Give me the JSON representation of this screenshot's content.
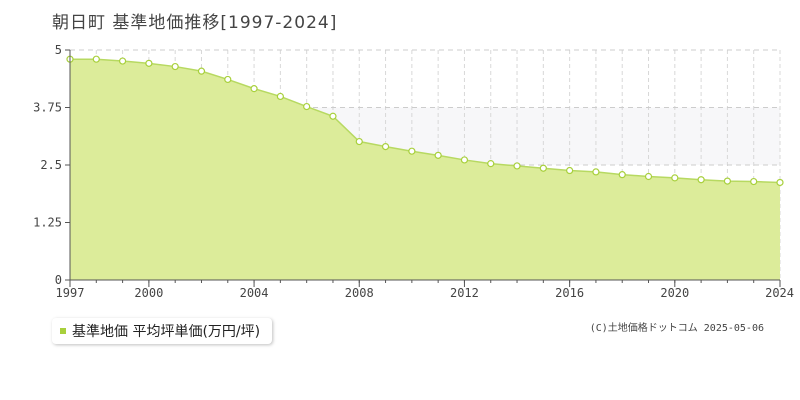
{
  "title": "朝日町 基準地価推移[1997-2024]",
  "legend": {
    "label": "基準地価 平均坪単価(万円/坪)"
  },
  "credit": "(C)土地価格ドットコム 2025-05-06",
  "colors": {
    "fill": "#dcec9a",
    "line": "#b7d961",
    "marker_stroke": "#a8d03c",
    "band": "#f7f7f9",
    "grid": "#cccccc"
  },
  "chart_data": {
    "type": "area",
    "x": [
      1997,
      1998,
      1999,
      2000,
      2001,
      2002,
      2003,
      2004,
      2005,
      2006,
      2007,
      2008,
      2009,
      2010,
      2011,
      2012,
      2013,
      2014,
      2015,
      2016,
      2017,
      2018,
      2019,
      2020,
      2021,
      2022,
      2023,
      2024
    ],
    "series": [
      {
        "name": "基準地価 平均坪単価(万円/坪)",
        "values": [
          4.8,
          4.8,
          4.76,
          4.71,
          4.64,
          4.54,
          4.36,
          4.16,
          3.99,
          3.77,
          3.56,
          3.01,
          2.9,
          2.8,
          2.71,
          2.61,
          2.53,
          2.48,
          2.43,
          2.38,
          2.35,
          2.29,
          2.25,
          2.22,
          2.18,
          2.15,
          2.14,
          2.12
        ]
      }
    ],
    "xlim": [
      1997,
      2024
    ],
    "ylim": [
      0,
      5
    ],
    "yticks": [
      0,
      1.25,
      2.5,
      3.75,
      5
    ],
    "ytick_labels": [
      "0",
      "1.25",
      "2.5",
      "3.75",
      "5"
    ],
    "xticks": [
      1997,
      2000,
      2004,
      2008,
      2012,
      2016,
      2020,
      2024
    ],
    "xtick_labels": [
      "1997",
      "2000",
      "2004",
      "2008",
      "2012",
      "2016",
      "2020",
      "2024"
    ],
    "grid": true,
    "legend_position": "bottom-left"
  }
}
